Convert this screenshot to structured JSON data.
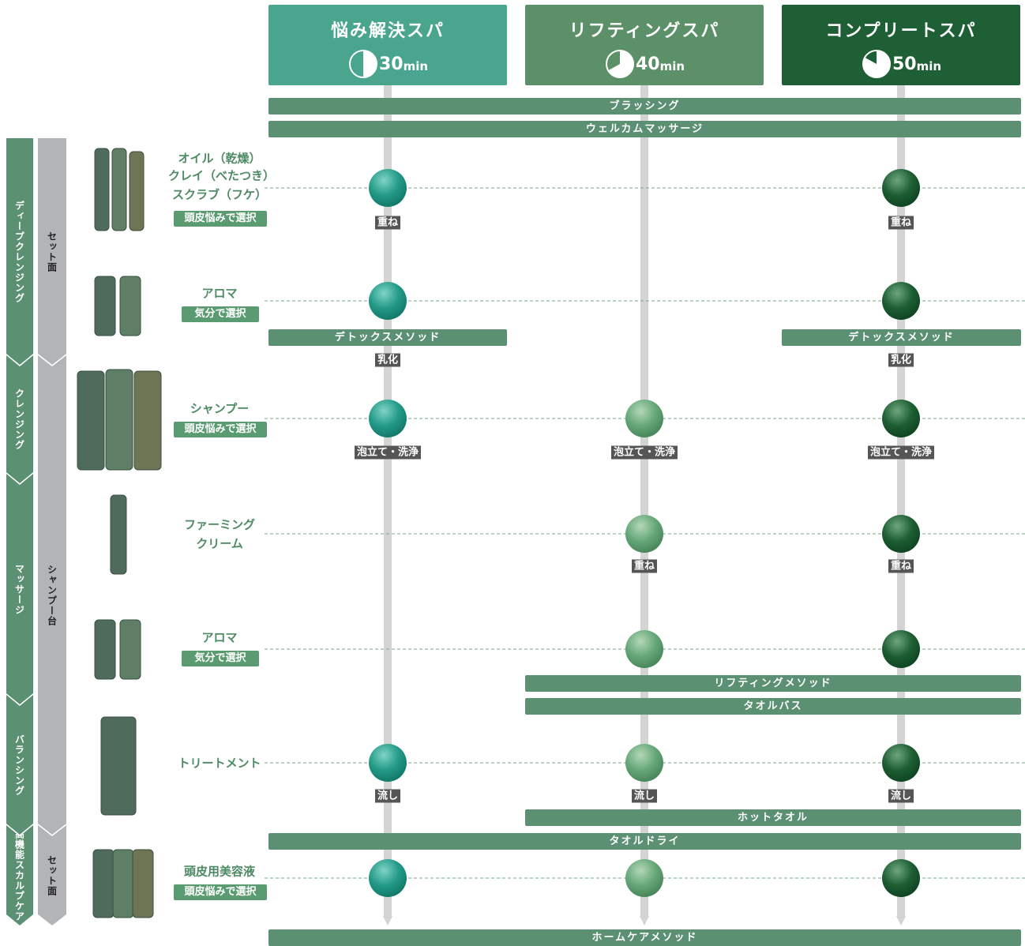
{
  "courses": [
    {
      "title": "悩み解決スパ",
      "time": "30",
      "unit": "min"
    },
    {
      "title": "リフティングスパ",
      "time": "40",
      "unit": "min"
    },
    {
      "title": "コンプリートスパ",
      "time": "50",
      "unit": "min"
    }
  ],
  "phases": [
    "ディープクレンジング",
    "クレンジング",
    "マッサージ",
    "バランシング",
    "高機能スカルプケア"
  ],
  "stations": [
    "セット面",
    "シャンプー台",
    "セット面"
  ],
  "steps": [
    {
      "lines": [
        "オイル（乾燥）",
        "クレイ（べたつき）",
        "スクラブ（フケ）"
      ],
      "tag": "頭皮悩みで選択"
    },
    {
      "lines": [
        "アロマ"
      ],
      "tag": "気分で選択"
    },
    {
      "lines": [
        "シャンプー"
      ],
      "tag": "頭皮悩みで選択"
    },
    {
      "lines": [
        "ファーミング",
        "クリーム"
      ]
    },
    {
      "lines": [
        "アロマ"
      ],
      "tag": "気分で選択"
    },
    {
      "lines": [
        "トリートメント"
      ]
    },
    {
      "lines": [
        "頭皮用美容液"
      ],
      "tag": "頭皮悩みで選択"
    }
  ],
  "bars": [
    "ブラッシング",
    "ウェルカムマッサージ",
    "デトックスメソッド",
    "デトックスメソッド",
    "リフティングメソッド",
    "タオルバス",
    "ホットタオル",
    "タオルドライ",
    "ホームケアメソッド"
  ],
  "notes": [
    "重ね",
    "重ね",
    "乳化",
    "乳化",
    "泡立て・洗浄",
    "泡立て・洗浄",
    "泡立て・洗浄",
    "重ね",
    "重ね",
    "流し",
    "流し",
    "流し"
  ]
}
